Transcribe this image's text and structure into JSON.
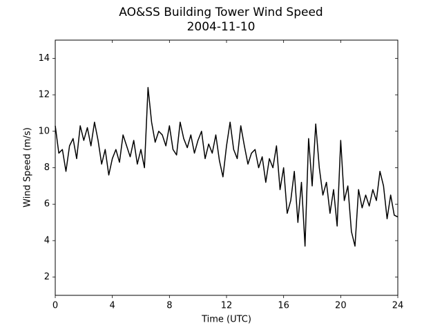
{
  "chart_data": {
    "type": "line",
    "title": "AO&SS Building Tower Wind Speed",
    "subtitle": "2004-11-10",
    "x_label": "Time (UTC)",
    "y_label": "Wind Speed (m/s)",
    "color": "#000000",
    "xlim": [
      0,
      24
    ],
    "xticks": [
      0,
      4,
      8,
      12,
      16,
      20,
      24
    ],
    "ylim": [
      1,
      15
    ],
    "yticks": [
      2,
      4,
      6,
      8,
      10,
      12,
      14
    ],
    "x": [
      0,
      0.25,
      0.5,
      0.75,
      1,
      1.25,
      1.5,
      1.75,
      2,
      2.25,
      2.5,
      2.75,
      3,
      3.25,
      3.5,
      3.75,
      4,
      4.25,
      4.5,
      4.75,
      5,
      5.25,
      5.5,
      5.75,
      6,
      6.25,
      6.5,
      6.75,
      7,
      7.25,
      7.5,
      7.75,
      8,
      8.25,
      8.5,
      8.75,
      9,
      9.25,
      9.5,
      9.75,
      10,
      10.25,
      10.5,
      10.75,
      11,
      11.25,
      11.5,
      11.75,
      12,
      12.25,
      12.5,
      12.75,
      13,
      13.25,
      13.5,
      13.75,
      14,
      14.25,
      14.5,
      14.75,
      15,
      15.25,
      15.5,
      15.75,
      16,
      16.25,
      16.5,
      16.75,
      17,
      17.25,
      17.5,
      17.75,
      18,
      18.25,
      18.5,
      18.75,
      19,
      19.25,
      19.5,
      19.75,
      20,
      20.25,
      20.5,
      20.75,
      21,
      21.25,
      21.5,
      21.75,
      22,
      22.25,
      22.5,
      22.75,
      23,
      23.25,
      23.5,
      23.75,
      24
    ],
    "values": [
      10.3,
      8.8,
      9.0,
      7.8,
      9.2,
      9.6,
      8.5,
      10.3,
      9.5,
      10.2,
      9.2,
      10.5,
      9.5,
      8.2,
      9.0,
      7.6,
      8.5,
      9.0,
      8.3,
      9.8,
      9.2,
      8.6,
      9.5,
      8.2,
      9.0,
      8.0,
      12.4,
      10.5,
      9.4,
      10.0,
      9.8,
      9.2,
      10.3,
      9.0,
      8.7,
      10.5,
      9.6,
      9.1,
      9.8,
      8.8,
      9.5,
      10.0,
      8.5,
      9.3,
      8.8,
      9.8,
      8.4,
      7.5,
      9.2,
      10.5,
      9.0,
      8.5,
      10.3,
      9.2,
      8.2,
      8.8,
      9.0,
      8.0,
      8.6,
      7.2,
      8.5,
      8.0,
      9.2,
      6.8,
      8.0,
      5.5,
      6.2,
      7.8,
      5.0,
      7.2,
      3.7,
      9.6,
      7.0,
      10.4,
      8.0,
      6.5,
      7.2,
      5.5,
      6.8,
      4.8,
      9.5,
      6.2,
      7.0,
      4.5,
      3.7,
      6.8,
      5.8,
      6.5,
      5.9,
      6.8,
      6.2,
      7.8,
      7.0,
      5.2,
      6.5,
      5.4,
      5.3
    ]
  }
}
